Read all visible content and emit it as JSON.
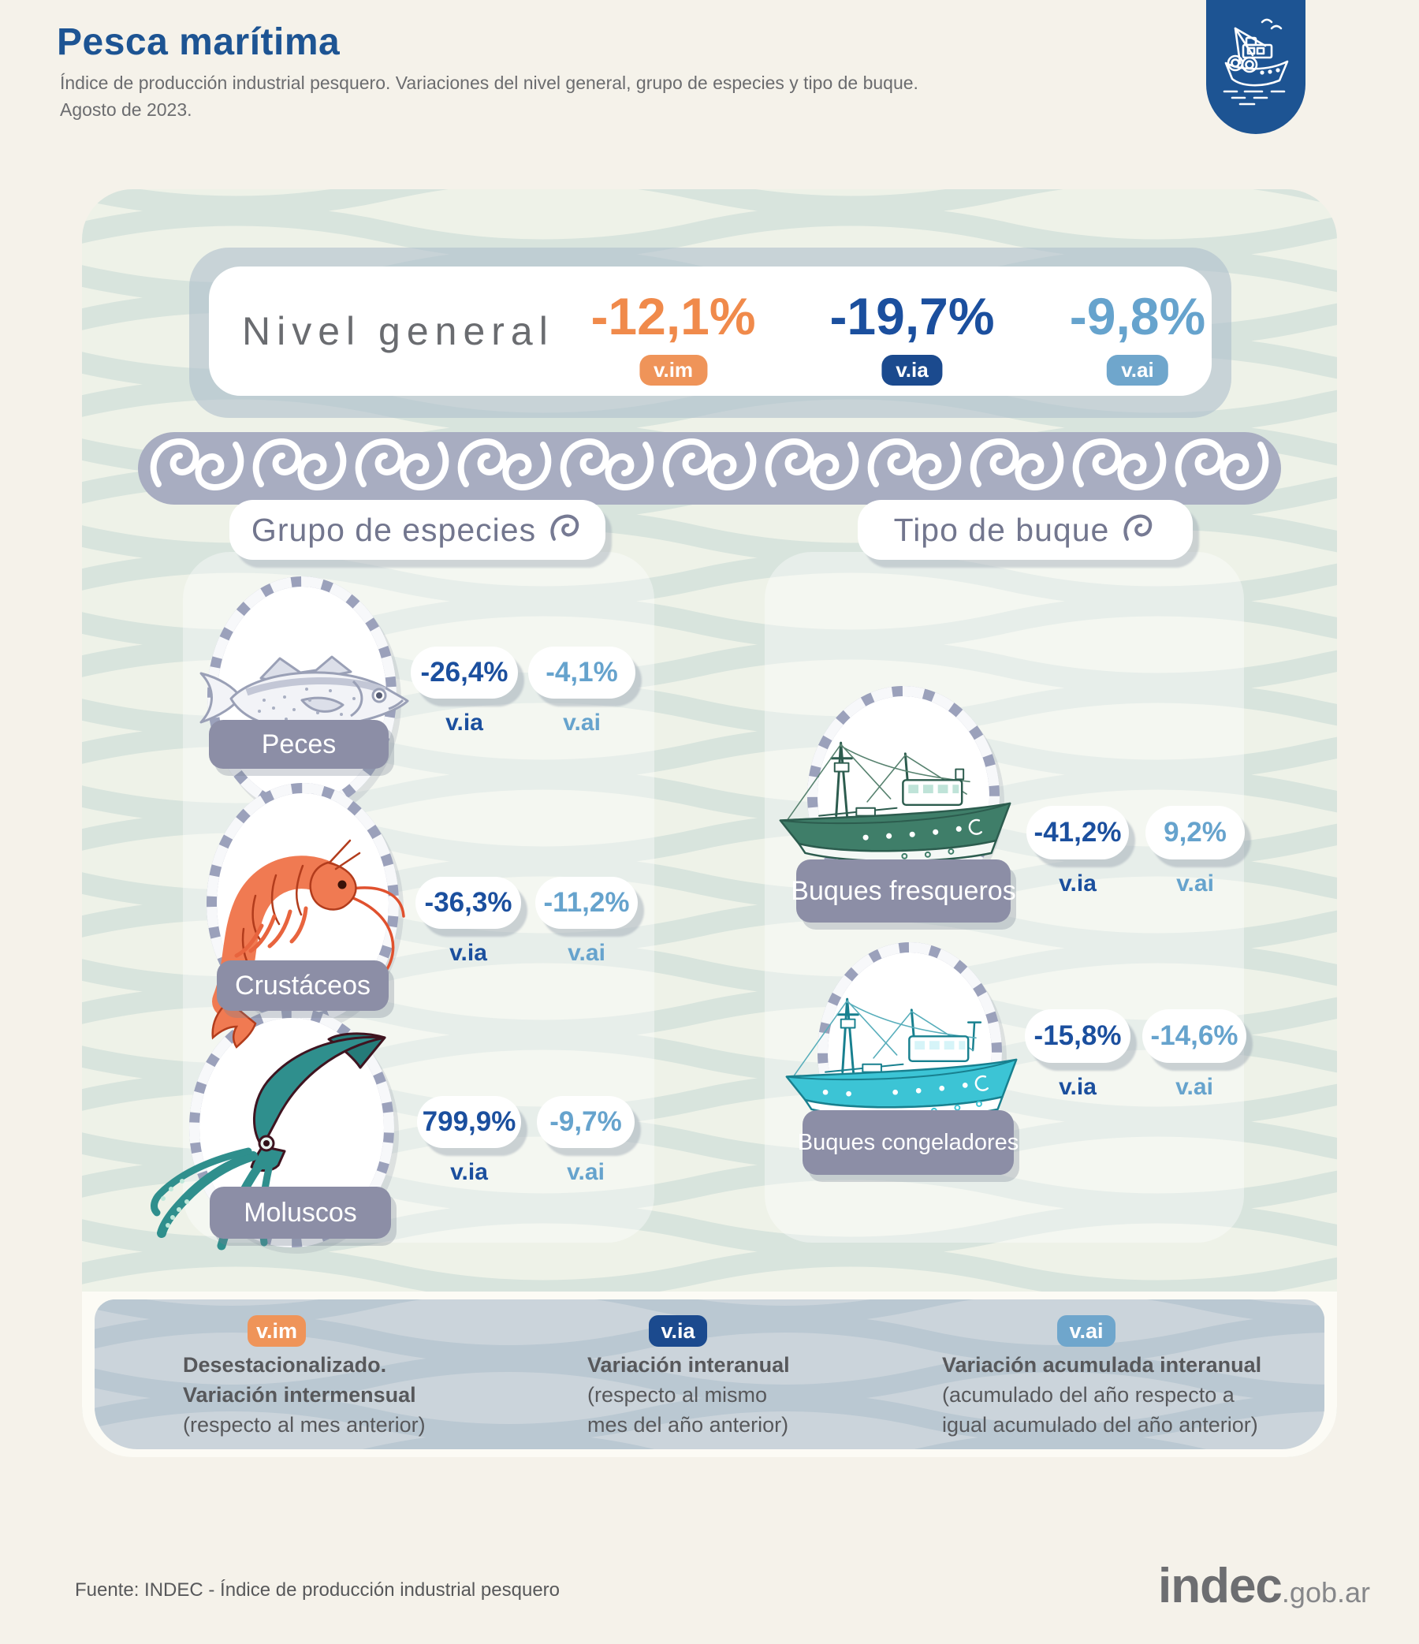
{
  "header": {
    "title": "Pesca marítima",
    "subtitle_line1": "Índice de producción industrial pesquero. Variaciones del nivel general, grupo de especies y tipo de buque.",
    "subtitle_line2": "Agosto de 2023."
  },
  "nivel_general": {
    "label": "Nivel general",
    "values": [
      {
        "value": "-12,1%",
        "tag": "v.im"
      },
      {
        "value": "-19,7%",
        "tag": "v.ia"
      },
      {
        "value": "-9,8%",
        "tag": "v.ai"
      }
    ]
  },
  "tags": {
    "via": "v.ia",
    "vai": "v.ai",
    "vim": "v.im"
  },
  "sections": {
    "especies": {
      "title": "Grupo de especies",
      "items": [
        {
          "name": "Peces",
          "icon": "fish-icon",
          "via": "-26,4%",
          "vai": "-4,1%"
        },
        {
          "name": "Crustáceos",
          "icon": "shrimp-icon",
          "via": "-36,3%",
          "vai": "-11,2%"
        },
        {
          "name": "Moluscos",
          "icon": "squid-icon",
          "via": "799,9%",
          "vai": "-9,7%"
        }
      ]
    },
    "buques": {
      "title": "Tipo de buque",
      "items": [
        {
          "name": "Buques fresqueros",
          "icon": "trawler-green-icon",
          "via": "-41,2%",
          "vai": "9,2%"
        },
        {
          "name": "Buques congeladores",
          "icon": "trawler-cyan-icon",
          "via": "-15,8%",
          "vai": "-14,6%"
        }
      ]
    }
  },
  "legend": {
    "items": [
      {
        "tag": "v.im",
        "line1": "Desestacionalizado.",
        "line2": "Variación intermensual",
        "line3": "(respecto al mes anterior)"
      },
      {
        "tag": "v.ia",
        "line1": "Variación interanual",
        "line2": "(respecto al mismo",
        "line3": "mes del año anterior)"
      },
      {
        "tag": "v.ai",
        "line1": "Variación acumulada interanual",
        "line2": "(acumulado del año respecto a",
        "line3": "igual acumulado del año anterior)"
      }
    ]
  },
  "footer": {
    "source": "Fuente: INDEC - Índice de producción industrial pesquero",
    "brand_main": "indec",
    "brand_suffix": ".gob.ar"
  },
  "colors": {
    "accent_orange": "#f08a4b",
    "accent_blue_dark": "#1b4a8e",
    "accent_blue_light": "#6fa6cc",
    "title_blue": "#1d5493"
  },
  "chart_data": {
    "type": "table",
    "title": "Índice de producción industrial pesquero — Agosto de 2023",
    "units": "%",
    "nivel_general": {
      "v_im": -12.1,
      "v_ia": -19.7,
      "v_ai": -9.8
    },
    "grupo_de_especies": [
      {
        "name": "Peces",
        "v_ia": -26.4,
        "v_ai": -4.1
      },
      {
        "name": "Crustáceos",
        "v_ia": -36.3,
        "v_ai": -11.2
      },
      {
        "name": "Moluscos",
        "v_ia": 799.9,
        "v_ai": -9.7
      }
    ],
    "tipo_de_buque": [
      {
        "name": "Buques fresqueros",
        "v_ia": -41.2,
        "v_ai": 9.2
      },
      {
        "name": "Buques congeladores",
        "v_ia": -15.8,
        "v_ai": -14.6
      }
    ]
  }
}
